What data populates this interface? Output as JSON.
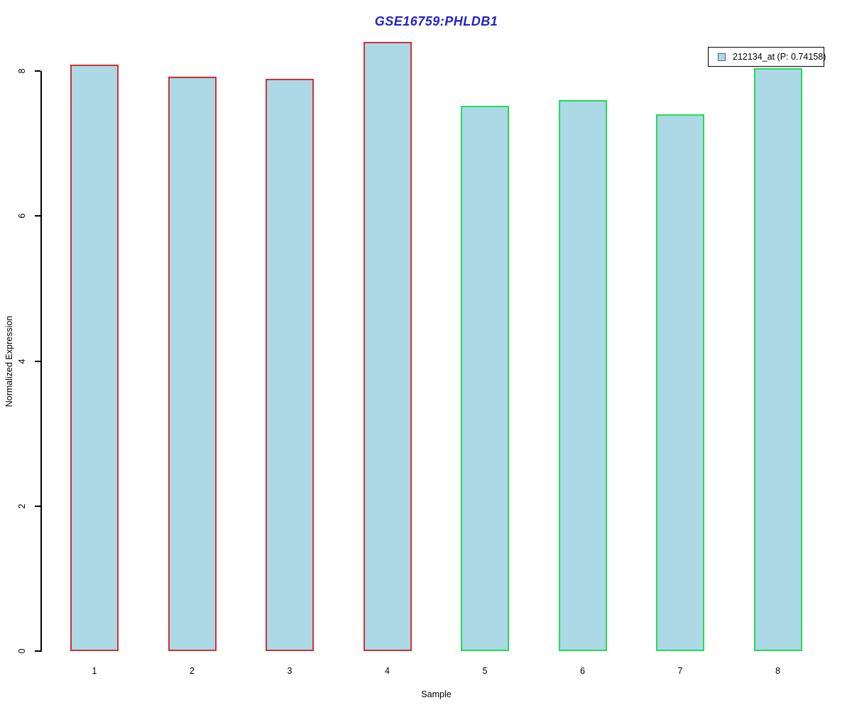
{
  "chart_data": {
    "type": "bar",
    "title": "GSE16759:PHLDB1",
    "title_color": "#2222CC",
    "xlabel": "Sample",
    "ylabel": "Normalized Expression",
    "categories": [
      "1",
      "2",
      "3",
      "4",
      "5",
      "6",
      "7",
      "8"
    ],
    "values": [
      8.09,
      7.92,
      7.89,
      8.4,
      7.52,
      7.6,
      7.4,
      8.04
    ],
    "bar_fill_color": "#ADD8E6",
    "bar_edge_colors": [
      "#CC3333",
      "#CC3333",
      "#CC3333",
      "#CC3333",
      "#22DD55",
      "#22DD55",
      "#22DD55",
      "#22DD55"
    ],
    "groups": [
      {
        "name": "group-1-red-border",
        "sample_indices": [
          1,
          2,
          3,
          4
        ],
        "edge_color": "#CC3333"
      },
      {
        "name": "group-2-green-border",
        "sample_indices": [
          5,
          6,
          7,
          8
        ],
        "edge_color": "#22DD55"
      }
    ],
    "ylim": [
      0,
      8.4
    ],
    "yticks": [
      "0",
      "2",
      "4",
      "6",
      "8"
    ],
    "grid": false,
    "legend_position": "top-right",
    "legend": [
      {
        "label": "212134_at (P: 0.74158)",
        "swatch_fill": "#ADD8E6"
      }
    ]
  }
}
